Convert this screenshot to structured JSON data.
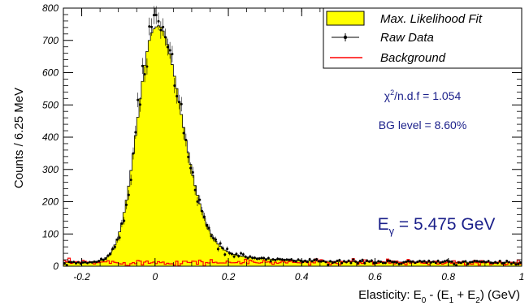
{
  "chart_data": {
    "type": "histogram",
    "xlabel_main": "Elasticity: E",
    "xlabel_sub0": "0",
    "xlabel_mid": " - (E",
    "xlabel_sub1": "1",
    "xlabel_plus": " + E",
    "xlabel_sub2": "2",
    "xlabel_end": ") (GeV)",
    "ylabel": "Counts / 6.25 MeV",
    "xlim": [
      -0.25,
      1.0
    ],
    "ylim": [
      0,
      800
    ],
    "xticks": [
      -0.2,
      0,
      0.2,
      0.4,
      0.6,
      0.8,
      1
    ],
    "xtick_labels": [
      "-0.2",
      "0",
      "0.2",
      "0.4",
      "0.6",
      "0.8",
      "1"
    ],
    "yticks": [
      0,
      100,
      200,
      300,
      400,
      500,
      600,
      700,
      800
    ],
    "ytick_labels": [
      "0",
      "100",
      "200",
      "300",
      "400",
      "500",
      "600",
      "700",
      "800"
    ],
    "bin_width": 0.00625,
    "fit_shape": {
      "peak_x": 0.0,
      "peak_y": 725,
      "sigma_left": 0.048,
      "sigma_right": 0.068,
      "tail_amp": 95,
      "tail_decay": 0.14
    },
    "background_level": 12,
    "legend": {
      "position": "top-right",
      "entries": [
        {
          "label": "Max. Likelihood Fit",
          "color": "#ffff00",
          "style": "fill"
        },
        {
          "label": "Raw Data",
          "color": "#000000",
          "style": "marker"
        },
        {
          "label": "Background",
          "color": "#ff0000",
          "style": "line"
        }
      ]
    },
    "annotations": {
      "chi2_prefix": "χ",
      "chi2_sup": "2",
      "chi2_suffix": "/n.d.f = 1.054",
      "bg_level": "BG level = 8.60%",
      "egamma_main": "E",
      "egamma_sub": "γ",
      "egamma_value": " = 5.475 GeV"
    },
    "colors": {
      "fit": "#ffff00",
      "data": "#000000",
      "background": "#ff0000",
      "annotation": "#1a1f8a"
    }
  }
}
